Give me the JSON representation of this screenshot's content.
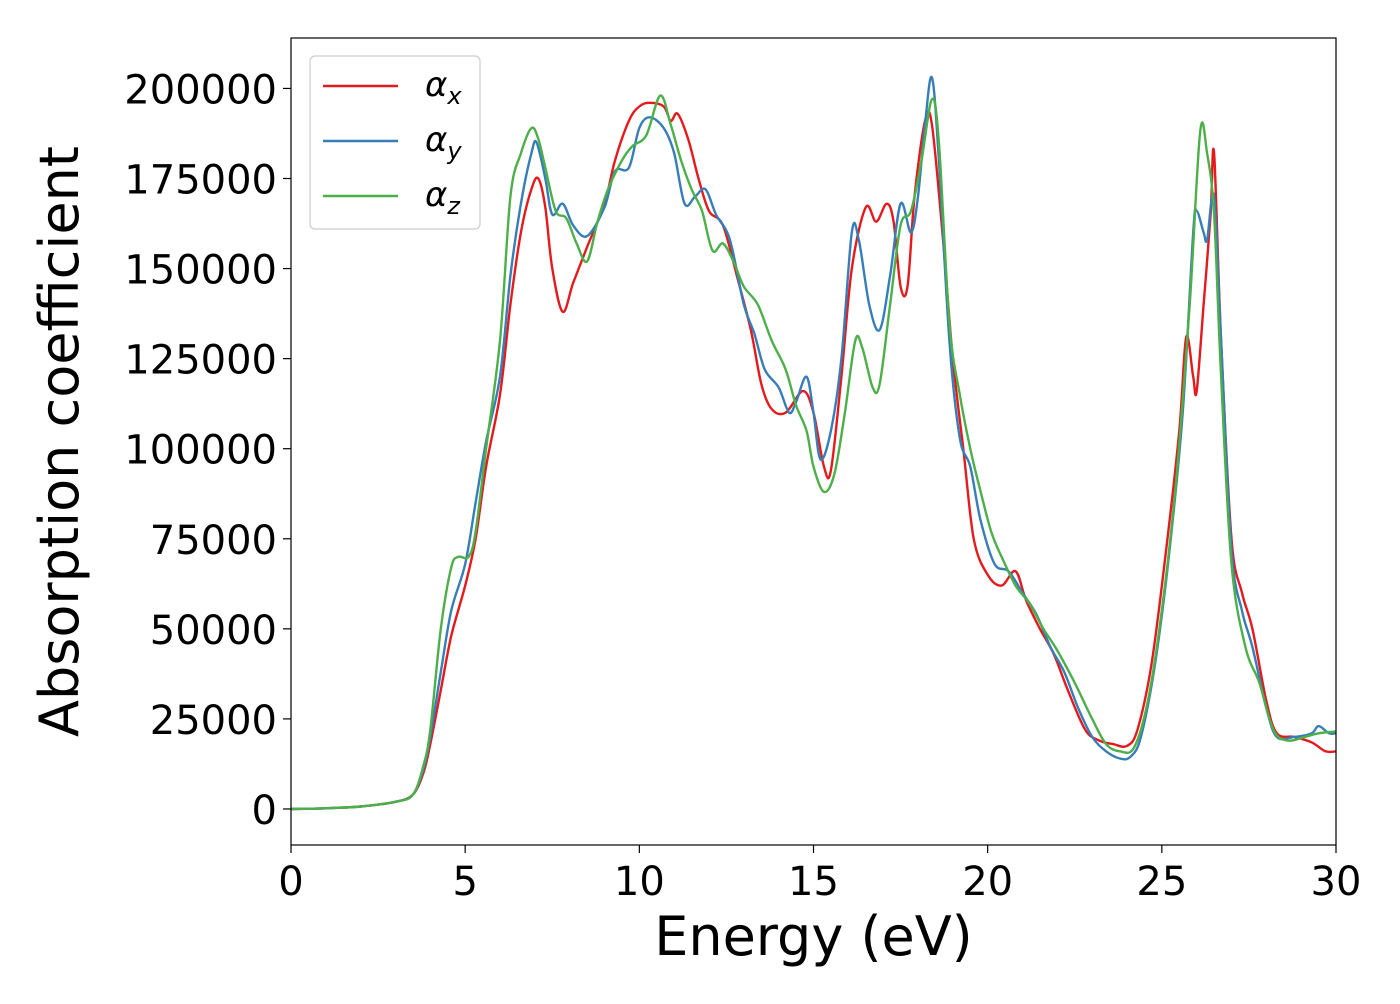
{
  "chart_data": {
    "type": "line",
    "title": "",
    "xlabel": "Energy (eV)",
    "ylabel": "Absorption coefficient",
    "xlim": [
      0,
      30
    ],
    "ylim": [
      -10000,
      214000
    ],
    "xticks": [
      0,
      5,
      10,
      15,
      20,
      25,
      30
    ],
    "yticks": [
      0,
      25000,
      50000,
      75000,
      100000,
      125000,
      150000,
      175000,
      200000
    ],
    "grid": false,
    "legend_position": "top-left",
    "series": [
      {
        "name": "αx",
        "base": "α",
        "sub": "x",
        "color": "#e41a1c",
        "points": [
          [
            0,
            0
          ],
          [
            1,
            200
          ],
          [
            2,
            700
          ],
          [
            3,
            2000
          ],
          [
            3.5,
            4000
          ],
          [
            3.8,
            10000
          ],
          [
            4.0,
            18000
          ],
          [
            4.3,
            33000
          ],
          [
            4.6,
            48000
          ],
          [
            5.0,
            62000
          ],
          [
            5.3,
            75000
          ],
          [
            5.6,
            95000
          ],
          [
            6.0,
            115000
          ],
          [
            6.3,
            140000
          ],
          [
            6.6,
            160000
          ],
          [
            6.9,
            172000
          ],
          [
            7.1,
            175000
          ],
          [
            7.3,
            167000
          ],
          [
            7.5,
            150000
          ],
          [
            7.8,
            138000
          ],
          [
            8.1,
            146000
          ],
          [
            8.5,
            156000
          ],
          [
            9.0,
            168000
          ],
          [
            9.3,
            180000
          ],
          [
            9.7,
            191000
          ],
          [
            10.0,
            195000
          ],
          [
            10.3,
            196000
          ],
          [
            10.7,
            195000
          ],
          [
            10.9,
            191000
          ],
          [
            11.1,
            193000
          ],
          [
            11.4,
            186000
          ],
          [
            11.7,
            175000
          ],
          [
            12.0,
            166000
          ],
          [
            12.4,
            162000
          ],
          [
            12.8,
            148000
          ],
          [
            13.2,
            133000
          ],
          [
            13.5,
            118000
          ],
          [
            13.8,
            111000
          ],
          [
            14.2,
            110000
          ],
          [
            14.7,
            116000
          ],
          [
            15.0,
            110000
          ],
          [
            15.3,
            95000
          ],
          [
            15.5,
            94000
          ],
          [
            15.8,
            120000
          ],
          [
            16.1,
            150000
          ],
          [
            16.5,
            167000
          ],
          [
            16.8,
            163000
          ],
          [
            17.1,
            168000
          ],
          [
            17.3,
            163000
          ],
          [
            17.5,
            145000
          ],
          [
            17.7,
            145000
          ],
          [
            17.9,
            170000
          ],
          [
            18.2,
            191000
          ],
          [
            18.4,
            190000
          ],
          [
            18.7,
            160000
          ],
          [
            19.0,
            125000
          ],
          [
            19.3,
            100000
          ],
          [
            19.6,
            75000
          ],
          [
            20.0,
            65000
          ],
          [
            20.4,
            62000
          ],
          [
            20.8,
            66000
          ],
          [
            21.1,
            58000
          ],
          [
            21.5,
            50000
          ],
          [
            21.9,
            43000
          ],
          [
            22.3,
            33000
          ],
          [
            22.8,
            22000
          ],
          [
            23.2,
            19000
          ],
          [
            23.6,
            18000
          ],
          [
            24.0,
            17500
          ],
          [
            24.3,
            22000
          ],
          [
            24.7,
            40000
          ],
          [
            25.1,
            70000
          ],
          [
            25.5,
            105000
          ],
          [
            25.7,
            131000
          ],
          [
            25.9,
            120000
          ],
          [
            26.0,
            116000
          ],
          [
            26.2,
            140000
          ],
          [
            26.4,
            165000
          ],
          [
            26.5,
            182000
          ],
          [
            26.7,
            130000
          ],
          [
            27.0,
            75000
          ],
          [
            27.3,
            60000
          ],
          [
            27.6,
            50000
          ],
          [
            28.0,
            30000
          ],
          [
            28.3,
            21000
          ],
          [
            28.8,
            20000
          ],
          [
            29.3,
            18500
          ],
          [
            29.7,
            16000
          ],
          [
            30,
            16000
          ]
        ]
      },
      {
        "name": "αy",
        "base": "α",
        "sub": "y",
        "color": "#377eb8",
        "points": [
          [
            0,
            0
          ],
          [
            1,
            200
          ],
          [
            2,
            700
          ],
          [
            3,
            2000
          ],
          [
            3.5,
            4000
          ],
          [
            3.8,
            11000
          ],
          [
            4.0,
            20000
          ],
          [
            4.3,
            38000
          ],
          [
            4.6,
            55000
          ],
          [
            5.0,
            68000
          ],
          [
            5.3,
            85000
          ],
          [
            5.6,
            102000
          ],
          [
            6.0,
            120000
          ],
          [
            6.3,
            148000
          ],
          [
            6.6,
            168000
          ],
          [
            6.9,
            182000
          ],
          [
            7.05,
            185000
          ],
          [
            7.3,
            175000
          ],
          [
            7.5,
            165000
          ],
          [
            7.8,
            168000
          ],
          [
            8.1,
            162000
          ],
          [
            8.5,
            159000
          ],
          [
            9.0,
            167000
          ],
          [
            9.3,
            177000
          ],
          [
            9.7,
            178000
          ],
          [
            10.0,
            189000
          ],
          [
            10.3,
            192000
          ],
          [
            10.7,
            189000
          ],
          [
            11.0,
            182000
          ],
          [
            11.3,
            168000
          ],
          [
            11.6,
            170000
          ],
          [
            11.9,
            172000
          ],
          [
            12.2,
            165000
          ],
          [
            12.6,
            158000
          ],
          [
            13.0,
            140000
          ],
          [
            13.3,
            132000
          ],
          [
            13.6,
            122000
          ],
          [
            14.0,
            117000
          ],
          [
            14.3,
            110000
          ],
          [
            14.5,
            113000
          ],
          [
            14.8,
            120000
          ],
          [
            15.0,
            110000
          ],
          [
            15.2,
            97000
          ],
          [
            15.5,
            105000
          ],
          [
            15.8,
            125000
          ],
          [
            16.1,
            160000
          ],
          [
            16.3,
            158000
          ],
          [
            16.6,
            140000
          ],
          [
            16.9,
            133000
          ],
          [
            17.2,
            148000
          ],
          [
            17.5,
            168000
          ],
          [
            17.8,
            160000
          ],
          [
            18.0,
            170000
          ],
          [
            18.2,
            190000
          ],
          [
            18.4,
            203000
          ],
          [
            18.6,
            180000
          ],
          [
            18.9,
            130000
          ],
          [
            19.2,
            103000
          ],
          [
            19.5,
            95000
          ],
          [
            19.8,
            80000
          ],
          [
            20.2,
            68000
          ],
          [
            20.6,
            66000
          ],
          [
            21.0,
            60000
          ],
          [
            21.4,
            54000
          ],
          [
            21.8,
            45000
          ],
          [
            22.2,
            38000
          ],
          [
            22.6,
            28000
          ],
          [
            23.0,
            20000
          ],
          [
            23.4,
            16000
          ],
          [
            23.8,
            14000
          ],
          [
            24.1,
            14500
          ],
          [
            24.4,
            20000
          ],
          [
            24.8,
            40000
          ],
          [
            25.2,
            70000
          ],
          [
            25.6,
            110000
          ],
          [
            25.9,
            160000
          ],
          [
            26.0,
            166000
          ],
          [
            26.2,
            160000
          ],
          [
            26.3,
            158000
          ],
          [
            26.5,
            170000
          ],
          [
            26.7,
            130000
          ],
          [
            27.0,
            72000
          ],
          [
            27.3,
            55000
          ],
          [
            27.6,
            45000
          ],
          [
            28.0,
            28000
          ],
          [
            28.3,
            20000
          ],
          [
            28.8,
            20000
          ],
          [
            29.3,
            21000
          ],
          [
            29.5,
            23000
          ],
          [
            29.8,
            21000
          ],
          [
            30,
            21000
          ]
        ]
      },
      {
        "name": "αz",
        "base": "α",
        "sub": "z",
        "color": "#4daf4a",
        "points": [
          [
            0,
            0
          ],
          [
            1,
            200
          ],
          [
            2,
            700
          ],
          [
            3,
            2000
          ],
          [
            3.5,
            4000
          ],
          [
            3.8,
            12000
          ],
          [
            4.0,
            22000
          ],
          [
            4.3,
            50000
          ],
          [
            4.6,
            67000
          ],
          [
            4.8,
            70000
          ],
          [
            5.1,
            70000
          ],
          [
            5.3,
            77000
          ],
          [
            5.6,
            100000
          ],
          [
            6.0,
            130000
          ],
          [
            6.3,
            170000
          ],
          [
            6.6,
            182000
          ],
          [
            6.9,
            189000
          ],
          [
            7.1,
            186000
          ],
          [
            7.3,
            178000
          ],
          [
            7.6,
            166000
          ],
          [
            7.9,
            164000
          ],
          [
            8.2,
            157000
          ],
          [
            8.5,
            152000
          ],
          [
            8.8,
            163000
          ],
          [
            9.1,
            172000
          ],
          [
            9.5,
            180000
          ],
          [
            9.8,
            184000
          ],
          [
            10.2,
            187000
          ],
          [
            10.6,
            198000
          ],
          [
            10.9,
            190000
          ],
          [
            11.2,
            180000
          ],
          [
            11.5,
            172000
          ],
          [
            11.8,
            166000
          ],
          [
            12.1,
            155000
          ],
          [
            12.4,
            157000
          ],
          [
            12.7,
            152000
          ],
          [
            13.0,
            145000
          ],
          [
            13.4,
            140000
          ],
          [
            13.8,
            130000
          ],
          [
            14.2,
            122000
          ],
          [
            14.5,
            112000
          ],
          [
            14.8,
            105000
          ],
          [
            15.0,
            95000
          ],
          [
            15.3,
            88000
          ],
          [
            15.6,
            93000
          ],
          [
            15.9,
            110000
          ],
          [
            16.2,
            130000
          ],
          [
            16.4,
            128000
          ],
          [
            16.7,
            117000
          ],
          [
            16.9,
            118000
          ],
          [
            17.2,
            140000
          ],
          [
            17.5,
            162000
          ],
          [
            17.8,
            166000
          ],
          [
            18.1,
            180000
          ],
          [
            18.4,
            197000
          ],
          [
            18.6,
            185000
          ],
          [
            18.9,
            135000
          ],
          [
            19.2,
            115000
          ],
          [
            19.5,
            100000
          ],
          [
            19.8,
            88000
          ],
          [
            20.1,
            77000
          ],
          [
            20.4,
            70000
          ],
          [
            20.8,
            62000
          ],
          [
            21.2,
            57000
          ],
          [
            21.6,
            50000
          ],
          [
            22.0,
            44000
          ],
          [
            22.5,
            35000
          ],
          [
            23.0,
            25000
          ],
          [
            23.4,
            18000
          ],
          [
            23.8,
            16000
          ],
          [
            24.2,
            17000
          ],
          [
            24.6,
            30000
          ],
          [
            25.0,
            55000
          ],
          [
            25.4,
            90000
          ],
          [
            25.8,
            140000
          ],
          [
            26.1,
            188000
          ],
          [
            26.3,
            182000
          ],
          [
            26.5,
            165000
          ],
          [
            26.7,
            120000
          ],
          [
            27.0,
            68000
          ],
          [
            27.4,
            45000
          ],
          [
            27.8,
            35000
          ],
          [
            28.2,
            22000
          ],
          [
            28.6,
            19000
          ],
          [
            29.1,
            20000
          ],
          [
            29.5,
            21000
          ],
          [
            30,
            21500
          ]
        ]
      }
    ]
  }
}
